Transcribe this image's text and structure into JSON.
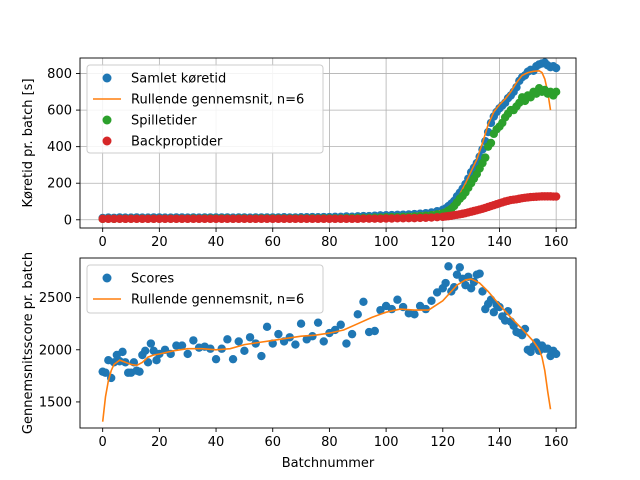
{
  "chart_data": [
    {
      "type": "scatter",
      "ylabel": "Køretid pr. batch [s]",
      "xlim": [
        -8,
        167
      ],
      "ylim": [
        -45,
        885
      ],
      "xticks": [
        0,
        20,
        40,
        60,
        80,
        100,
        120,
        140,
        160
      ],
      "yticks": [
        0,
        200,
        400,
        600,
        800
      ],
      "grid": true,
      "legend_position": "top-left",
      "series": [
        {
          "name": "Samlet køretid",
          "kind": "points",
          "color": "#1f77b4",
          "x": [
            0,
            2,
            4,
            6,
            8,
            10,
            12,
            14,
            16,
            18,
            20,
            22,
            24,
            26,
            28,
            30,
            32,
            34,
            36,
            38,
            40,
            42,
            44,
            46,
            48,
            50,
            52,
            54,
            56,
            58,
            60,
            62,
            64,
            66,
            68,
            70,
            72,
            74,
            76,
            78,
            80,
            82,
            84,
            86,
            88,
            90,
            92,
            94,
            96,
            98,
            100,
            102,
            104,
            106,
            108,
            110,
            112,
            114,
            116,
            118,
            120,
            121,
            122,
            123,
            124,
            125,
            126,
            127,
            128,
            129,
            130,
            131,
            132,
            133,
            134,
            135,
            136,
            137,
            138,
            139,
            140,
            141,
            142,
            143,
            144,
            145,
            146,
            147,
            148,
            149,
            150,
            151,
            152,
            153,
            154,
            155,
            156,
            157,
            158,
            159,
            160
          ],
          "y": [
            10,
            12,
            11,
            13,
            12,
            12,
            13,
            12,
            12,
            13,
            13,
            12,
            12,
            13,
            13,
            12,
            13,
            12,
            13,
            13,
            13,
            13,
            13,
            12,
            13,
            13,
            12,
            13,
            13,
            13,
            13,
            13,
            14,
            13,
            13,
            14,
            14,
            15,
            14,
            15,
            15,
            16,
            16,
            18,
            17,
            19,
            20,
            20,
            22,
            24,
            25,
            26,
            27,
            28,
            29,
            31,
            33,
            36,
            40,
            47,
            55,
            62,
            75,
            88,
            103,
            128,
            148,
            170,
            195,
            225,
            260,
            285,
            310,
            345,
            385,
            430,
            480,
            530,
            565,
            590,
            610,
            625,
            640,
            665,
            680,
            700,
            725,
            760,
            780,
            790,
            810,
            820,
            815,
            840,
            850,
            855,
            860,
            845,
            835,
            840,
            830
          ]
        },
        {
          "name": "Rullende gennemsnit, n=6",
          "kind": "line",
          "color": "#ff7f0e",
          "x": [
            0,
            3,
            6,
            10,
            20,
            40,
            60,
            80,
            90,
            100,
            110,
            115,
            118,
            120,
            122,
            124,
            126,
            128,
            130,
            132,
            134,
            136,
            138,
            140,
            142,
            144,
            146,
            148,
            150,
            152,
            154,
            155,
            156,
            157,
            158
          ],
          "y": [
            6,
            9,
            11,
            12,
            12,
            13,
            13,
            15,
            19,
            25,
            33,
            38,
            45,
            52,
            70,
            95,
            140,
            200,
            265,
            330,
            420,
            520,
            590,
            630,
            660,
            700,
            750,
            790,
            805,
            812,
            815,
            805,
            770,
            700,
            600
          ]
        },
        {
          "name": "Spilletider",
          "kind": "points",
          "color": "#2ca02c",
          "x": [
            0,
            2,
            4,
            6,
            8,
            10,
            12,
            14,
            16,
            18,
            20,
            22,
            24,
            26,
            28,
            30,
            32,
            34,
            36,
            38,
            40,
            42,
            44,
            46,
            48,
            50,
            52,
            54,
            56,
            58,
            60,
            62,
            64,
            66,
            68,
            70,
            72,
            74,
            76,
            78,
            80,
            82,
            84,
            86,
            88,
            90,
            92,
            94,
            96,
            98,
            100,
            102,
            104,
            106,
            108,
            110,
            112,
            114,
            116,
            118,
            120,
            121,
            122,
            123,
            124,
            125,
            126,
            127,
            128,
            129,
            130,
            131,
            132,
            133,
            134,
            135,
            136,
            137,
            138,
            139,
            140,
            141,
            142,
            143,
            144,
            145,
            146,
            147,
            148,
            149,
            150,
            151,
            152,
            153,
            154,
            155,
            156,
            157,
            158,
            159,
            160
          ],
          "y": [
            5,
            6,
            5,
            6,
            6,
            6,
            6,
            6,
            6,
            6,
            6,
            6,
            6,
            6,
            6,
            6,
            7,
            6,
            7,
            7,
            7,
            7,
            7,
            6,
            7,
            7,
            6,
            7,
            7,
            7,
            7,
            7,
            7,
            7,
            7,
            7,
            7,
            8,
            7,
            8,
            8,
            8,
            8,
            9,
            9,
            10,
            10,
            11,
            12,
            13,
            14,
            15,
            15,
            16,
            17,
            18,
            20,
            22,
            25,
            30,
            35,
            40,
            50,
            60,
            75,
            95,
            115,
            130,
            150,
            175,
            200,
            225,
            250,
            280,
            310,
            340,
            400,
            420,
            470,
            495,
            510,
            530,
            560,
            580,
            600,
            600,
            620,
            640,
            670,
            650,
            680,
            670,
            700,
            690,
            720,
            700,
            710,
            690,
            700,
            680,
            700
          ]
        },
        {
          "name": "Backproptider",
          "kind": "points",
          "color": "#d62728",
          "x": [
            0,
            2,
            4,
            6,
            8,
            10,
            12,
            14,
            16,
            18,
            20,
            22,
            24,
            26,
            28,
            30,
            32,
            34,
            36,
            38,
            40,
            42,
            44,
            46,
            48,
            50,
            52,
            54,
            56,
            58,
            60,
            62,
            64,
            66,
            68,
            70,
            72,
            74,
            76,
            78,
            80,
            82,
            84,
            86,
            88,
            90,
            92,
            94,
            96,
            98,
            100,
            102,
            104,
            106,
            108,
            110,
            112,
            114,
            116,
            118,
            120,
            121,
            122,
            123,
            124,
            125,
            126,
            127,
            128,
            129,
            130,
            131,
            132,
            133,
            134,
            135,
            136,
            137,
            138,
            139,
            140,
            141,
            142,
            143,
            144,
            145,
            146,
            147,
            148,
            149,
            150,
            151,
            152,
            153,
            154,
            155,
            156,
            157,
            158,
            159,
            160
          ],
          "y": [
            5,
            5,
            5,
            5,
            5,
            5,
            5,
            5,
            5,
            5,
            5,
            5,
            5,
            5,
            5,
            5,
            5,
            5,
            5,
            5,
            5,
            5,
            5,
            5,
            5,
            5,
            5,
            5,
            5,
            5,
            5,
            5,
            5,
            5,
            5,
            5,
            5,
            5,
            5,
            5,
            5,
            5,
            5,
            5,
            5,
            5,
            6,
            6,
            6,
            6,
            7,
            7,
            8,
            8,
            9,
            9,
            10,
            11,
            12,
            14,
            16,
            18,
            20,
            22,
            25,
            27,
            30,
            33,
            36,
            40,
            44,
            48,
            52,
            56,
            60,
            65,
            70,
            75,
            80,
            85,
            90,
            95,
            100,
            104,
            108,
            110,
            112,
            115,
            118,
            120,
            122,
            124,
            125,
            126,
            127,
            128,
            128,
            128,
            128,
            127,
            127
          ]
        }
      ]
    },
    {
      "type": "scatter",
      "xlabel": "Batchnummer",
      "ylabel": "Gennemsnitsscore pr. batch",
      "xlim": [
        -8,
        167
      ],
      "ylim": [
        1250,
        2880
      ],
      "xticks": [
        0,
        20,
        40,
        60,
        80,
        100,
        120,
        140,
        160
      ],
      "yticks": [
        1500,
        2000,
        2500
      ],
      "grid": false,
      "legend_position": "top-left",
      "series": [
        {
          "name": "Scores",
          "kind": "points",
          "color": "#1f77b4",
          "x": [
            0,
            1,
            2,
            3,
            4,
            5,
            6,
            7,
            8,
            9,
            10,
            11,
            12,
            13,
            14,
            15,
            16,
            17,
            18,
            19,
            20,
            22,
            24,
            26,
            28,
            30,
            32,
            34,
            36,
            38,
            40,
            42,
            44,
            46,
            48,
            50,
            52,
            54,
            56,
            58,
            60,
            62,
            64,
            66,
            68,
            70,
            72,
            74,
            76,
            78,
            80,
            82,
            84,
            86,
            88,
            90,
            92,
            94,
            96,
            98,
            100,
            102,
            104,
            106,
            108,
            110,
            112,
            114,
            116,
            118,
            120,
            121,
            122,
            123,
            124,
            125,
            126,
            127,
            128,
            129,
            130,
            131,
            132,
            133,
            134,
            135,
            136,
            137,
            138,
            139,
            140,
            141,
            142,
            143,
            144,
            145,
            146,
            147,
            148,
            149,
            150,
            151,
            152,
            153,
            154,
            155,
            156,
            157,
            158,
            159,
            160
          ],
          "y": [
            1790,
            1780,
            1900,
            1730,
            1880,
            1950,
            1890,
            1980,
            1880,
            1780,
            1780,
            1880,
            1800,
            1790,
            1950,
            1990,
            1880,
            2060,
            1990,
            1900,
            1960,
            2000,
            1960,
            2040,
            2040,
            1960,
            2090,
            2020,
            2030,
            2010,
            1910,
            2010,
            2100,
            1910,
            2080,
            1990,
            2120,
            2060,
            1940,
            2220,
            2060,
            2150,
            2080,
            2120,
            2050,
            2250,
            2100,
            2130,
            2260,
            2080,
            2160,
            2190,
            2240,
            2060,
            2150,
            2340,
            2460,
            2170,
            2180,
            2380,
            2420,
            2390,
            2480,
            2410,
            2350,
            2340,
            2420,
            2390,
            2470,
            2550,
            2590,
            2640,
            2800,
            2560,
            2600,
            2720,
            2790,
            2680,
            2620,
            2700,
            2590,
            2650,
            2720,
            2730,
            2560,
            2390,
            2440,
            2480,
            2360,
            2430,
            2410,
            2320,
            2280,
            2370,
            2270,
            2230,
            2170,
            2160,
            2140,
            2200,
            2000,
            1980,
            2030,
            2070,
            1990,
            2040,
            2010,
            2010,
            1940,
            1990,
            1960
          ]
        },
        {
          "name": "Rullende gennemsnit, n=6",
          "kind": "line",
          "color": "#ff7f0e",
          "x": [
            0,
            1,
            2,
            3,
            4,
            6,
            8,
            10,
            12,
            14,
            16,
            18,
            20,
            25,
            30,
            35,
            40,
            45,
            50,
            55,
            60,
            65,
            70,
            75,
            80,
            85,
            90,
            95,
            100,
            105,
            110,
            115,
            120,
            125,
            128,
            130,
            133,
            136,
            140,
            144,
            148,
            152,
            154,
            155,
            156,
            157,
            158
          ],
          "y": [
            1310,
            1550,
            1700,
            1800,
            1860,
            1900,
            1880,
            1860,
            1850,
            1880,
            1930,
            1950,
            1960,
            1990,
            2010,
            2010,
            2000,
            2010,
            2050,
            2070,
            2090,
            2110,
            2130,
            2140,
            2160,
            2190,
            2250,
            2310,
            2360,
            2390,
            2380,
            2380,
            2470,
            2620,
            2670,
            2680,
            2640,
            2560,
            2430,
            2310,
            2200,
            2080,
            2000,
            1930,
            1800,
            1600,
            1430
          ]
        }
      ]
    }
  ]
}
